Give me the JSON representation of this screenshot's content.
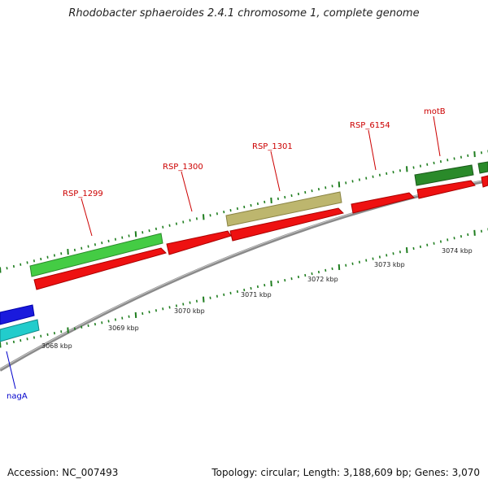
{
  "title": "Rhodobacter sphaeroides 2.4.1 chromosome 1, complete genome",
  "footer": {
    "accession": "Accession: NC_007493",
    "summary": "Topology: circular; Length: 3,188,609 bp; Genes: 3,070"
  },
  "colors": {
    "backbone": "#8a8a8a",
    "tick": "#1e7d1e",
    "tick_label": "#222222",
    "label_red": "#cc0000",
    "label_blue": "#0000cc",
    "cds_red": "#ee1111",
    "gene_green_light": "#44cc44",
    "gene_green_dark": "#2a8a2a",
    "gene_khaki": "#bdb66e",
    "gene_blue": "#1a1add",
    "gene_cyan": "#22cccc"
  },
  "tick_labels": [
    "3068 kbp",
    "3069 kbp",
    "3070 kbp",
    "3071 kbp",
    "3072 kbp",
    "3073 kbp",
    "3074 kbp"
  ],
  "genes": [
    {
      "name": "RSP_1299",
      "strand": "+",
      "color": "gene_green_light"
    },
    {
      "name": "RSP_1300",
      "strand": "+",
      "color": "cds_red"
    },
    {
      "name": "RSP_1301",
      "strand": "+",
      "color": "gene_khaki"
    },
    {
      "name": "RSP_6154",
      "strand": "+",
      "color": "cds_red"
    },
    {
      "name": "motB",
      "strand": "+",
      "color": "gene_green_dark"
    },
    {
      "name": "nagA",
      "strand": "+",
      "color": "gene_blue"
    }
  ]
}
